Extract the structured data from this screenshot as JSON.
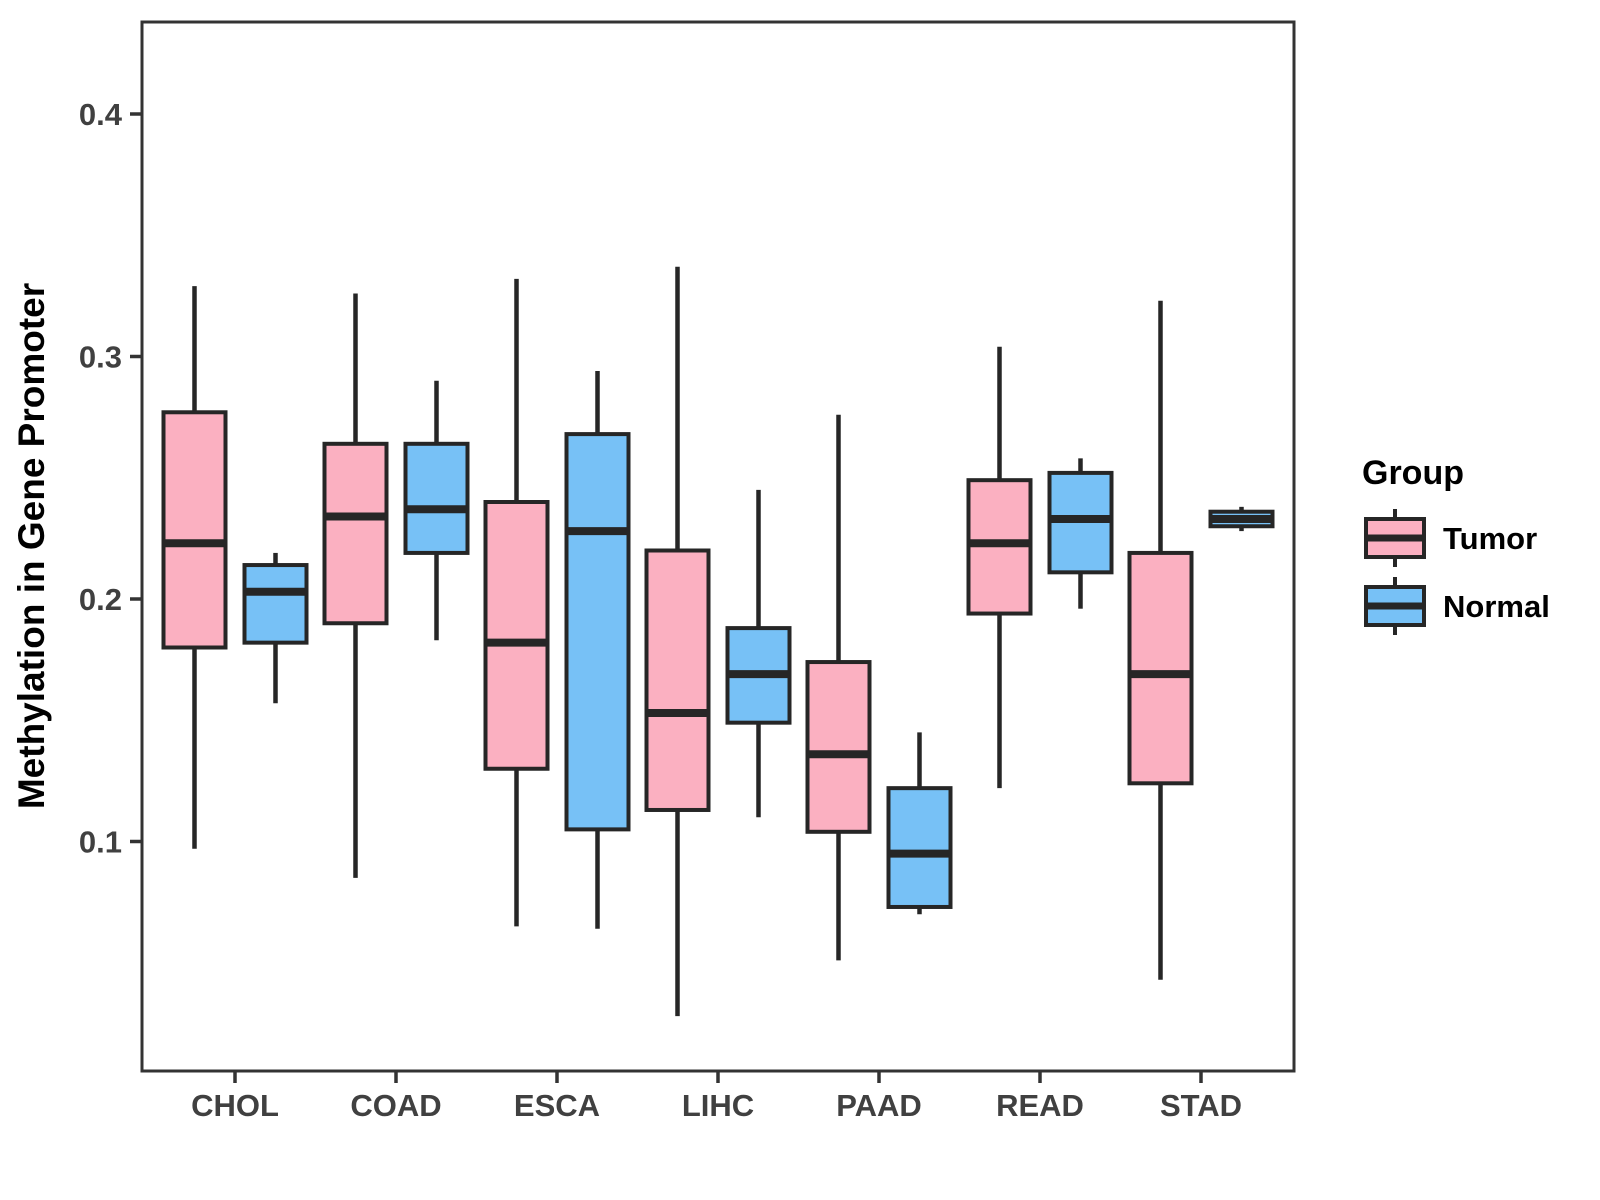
{
  "chart_data": {
    "type": "boxplot",
    "title": "",
    "xlabel": "",
    "ylabel": "Methylation in Gene Promoter",
    "categories": [
      "CHOL",
      "COAD",
      "ESCA",
      "LIHC",
      "PAAD",
      "READ",
      "STAD"
    ],
    "y_ticks": [
      "0.1",
      "0.2",
      "0.3",
      "0.4"
    ],
    "ylim": [
      0.005,
      0.438
    ],
    "grid": "off",
    "legend": {
      "title": "Group",
      "position": "right",
      "entries": [
        {
          "label": "Tumor",
          "fill": "#FBB0C1"
        },
        {
          "label": "Normal",
          "fill": "#77C1F6"
        }
      ]
    },
    "colors": {
      "tumor_fill": "#FBB0C1",
      "normal_fill": "#77C1F6",
      "box_stroke": "#262626",
      "panel_border": "#333333",
      "axis_text": "#404040",
      "title_text": "#000000"
    },
    "stat_order": [
      "min",
      "q1",
      "median",
      "q3",
      "max"
    ],
    "series": [
      {
        "name": "Tumor",
        "fill": "#FBB0C1",
        "stats": [
          [
            0.097,
            0.18,
            0.223,
            0.277,
            0.329
          ],
          [
            0.085,
            0.19,
            0.234,
            0.264,
            0.326
          ],
          [
            0.065,
            0.13,
            0.182,
            0.24,
            0.332
          ],
          [
            0.028,
            0.113,
            0.153,
            0.22,
            0.337
          ],
          [
            0.051,
            0.104,
            0.136,
            0.174,
            0.276
          ],
          [
            0.122,
            0.194,
            0.223,
            0.249,
            0.304
          ],
          [
            0.043,
            0.124,
            0.169,
            0.219,
            0.323
          ]
        ]
      },
      {
        "name": "Normal",
        "fill": "#77C1F6",
        "stats": [
          [
            0.157,
            0.182,
            0.203,
            0.214,
            0.219
          ],
          [
            0.183,
            0.219,
            0.237,
            0.264,
            0.29
          ],
          [
            0.064,
            0.105,
            0.228,
            0.268,
            0.294
          ],
          [
            0.11,
            0.149,
            0.169,
            0.188,
            0.245
          ],
          [
            0.07,
            0.073,
            0.095,
            0.122,
            0.145
          ],
          [
            0.196,
            0.211,
            0.233,
            0.252,
            0.258
          ],
          [
            0.228,
            0.23,
            0.233,
            0.236,
            0.238
          ]
        ]
      }
    ]
  }
}
